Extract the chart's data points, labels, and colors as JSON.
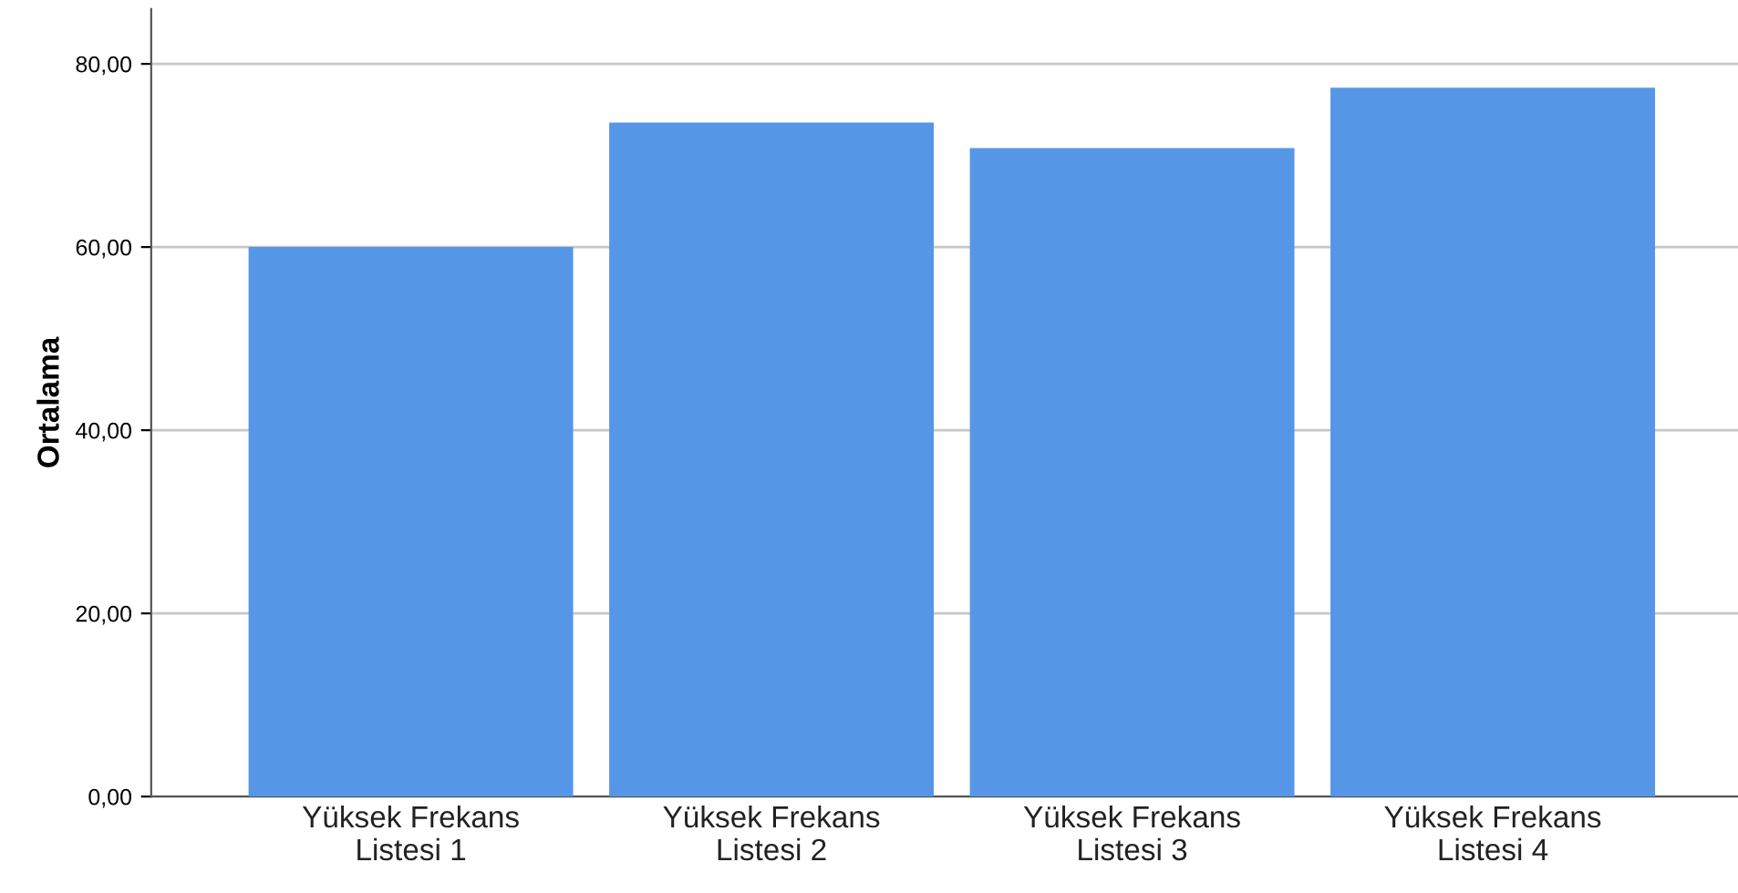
{
  "chart_data": {
    "type": "bar",
    "ylabel": "Ortalama",
    "categories": [
      "Yüksek Frekans\nListesi 1",
      "Yüksek Frekans\nListesi 2",
      "Yüksek Frekans\nListesi 3",
      "Yüksek Frekans\nListesi 4"
    ],
    "values": [
      60.0,
      73.6,
      70.8,
      77.4
    ],
    "color": "#5596e6",
    "ylim": [
      0,
      86
    ],
    "yticks": [
      {
        "value": 0,
        "label": "0,00"
      },
      {
        "value": 20,
        "label": "20,00"
      },
      {
        "value": 40,
        "label": "40,00"
      },
      {
        "value": 60,
        "label": "60,00"
      },
      {
        "value": 80,
        "label": "80,00"
      }
    ],
    "grid": "y"
  }
}
